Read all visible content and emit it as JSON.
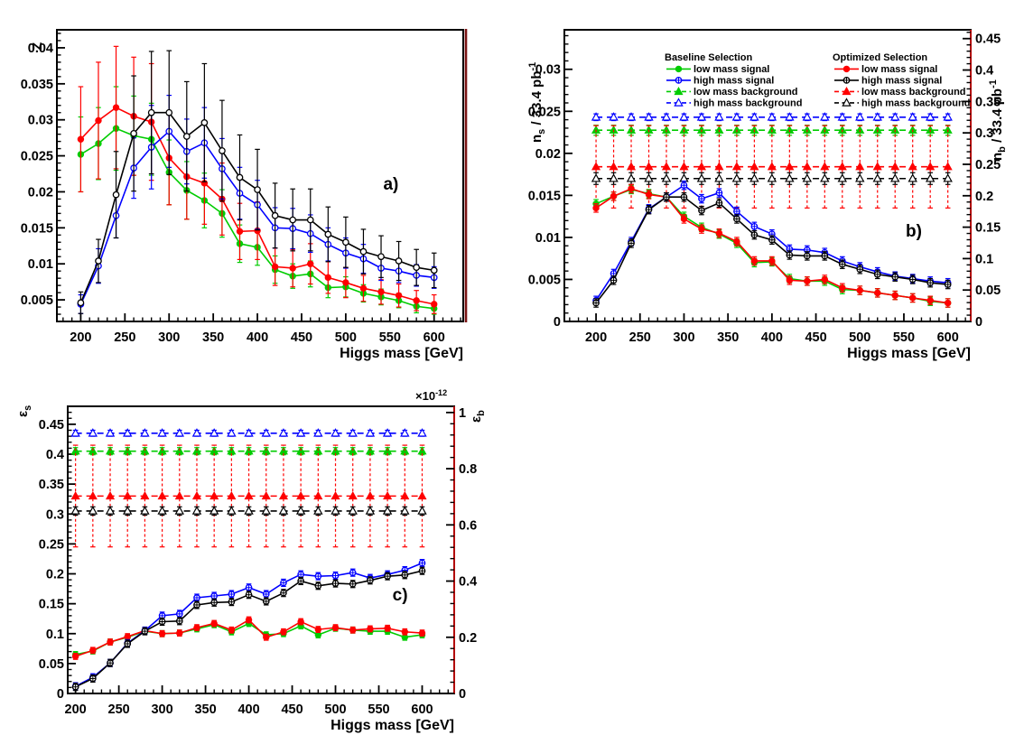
{
  "page": {
    "background": "#ffffff",
    "frame_color": "#000000",
    "accent_red_axis": "#ff0000",
    "maroon_border": "#7a1414"
  },
  "chart_data": [
    {
      "id": "a",
      "type": "line",
      "annotation": "a)",
      "annotation_pos": [
        0.822,
        0.548
      ],
      "xlabel": "Higgs mass [GeV]",
      "ylabel": [
        {
          "t": "Z"
        }
      ],
      "xlim": [
        173,
        633
      ],
      "xticks": [
        200,
        250,
        300,
        350,
        400,
        450,
        500,
        550,
        600
      ],
      "x_minor_step": 10,
      "ylim": [
        0.002,
        0.0425
      ],
      "yticks": [
        0.005,
        0.01,
        0.015,
        0.02,
        0.025,
        0.03,
        0.035,
        0.04
      ],
      "ytick_labels": [
        "0.005",
        "0.01",
        "0.015",
        "0.02",
        "0.025",
        "0.03",
        "0.035",
        "0.04"
      ],
      "y_minor_step": 0.001,
      "grid": false,
      "right_border": "maroon",
      "x": [
        200,
        220,
        240,
        260,
        280,
        300,
        320,
        340,
        360,
        380,
        400,
        420,
        440,
        460,
        480,
        500,
        520,
        540,
        560,
        580,
        600
      ],
      "series": [
        {
          "name": "baseline-low-mass",
          "color": "#00cc00",
          "marker": "circle-filled",
          "line": "solid",
          "values": [
            0.0252,
            0.0267,
            0.0288,
            0.0278,
            0.0273,
            0.0227,
            0.0202,
            0.0188,
            0.017,
            0.0128,
            0.0123,
            0.0092,
            0.0083,
            0.0086,
            0.0067,
            0.0068,
            0.0059,
            0.0054,
            0.0049,
            0.0041,
            0.0038
          ],
          "err": [
            0.0052,
            0.005,
            0.0058,
            0.0055,
            0.005,
            0.0045,
            0.004,
            0.0038,
            0.0033,
            0.0026,
            0.0025,
            0.0019,
            0.0017,
            0.0018,
            0.0014,
            0.0014,
            0.0012,
            0.0011,
            0.001,
            0.0009,
            0.0008
          ]
        },
        {
          "name": "optimized-low-mass",
          "color": "#ff0000",
          "marker": "circle-filled",
          "line": "solid",
          "values": [
            0.0273,
            0.0299,
            0.0317,
            0.0305,
            0.0297,
            0.0247,
            0.0221,
            0.0212,
            0.019,
            0.0145,
            0.0146,
            0.0096,
            0.0094,
            0.01,
            0.0081,
            0.0074,
            0.0066,
            0.0061,
            0.0056,
            0.0049,
            0.0044
          ],
          "err": [
            0.0073,
            0.0081,
            0.0085,
            0.0082,
            0.0081,
            0.0065,
            0.0059,
            0.0057,
            0.005,
            0.0039,
            0.004,
            0.0026,
            0.0026,
            0.0028,
            0.0022,
            0.0021,
            0.0018,
            0.0017,
            0.0016,
            0.0014,
            0.0013
          ]
        },
        {
          "name": "baseline-high-mass",
          "color": "#0000ff",
          "marker": "circle-open",
          "line": "solid",
          "values": [
            0.0044,
            0.0097,
            0.0167,
            0.0233,
            0.0262,
            0.0284,
            0.0256,
            0.0268,
            0.0232,
            0.0198,
            0.0182,
            0.015,
            0.0149,
            0.0142,
            0.0127,
            0.0115,
            0.0107,
            0.0094,
            0.009,
            0.0084,
            0.0081
          ],
          "err": [
            0.0013,
            0.0024,
            0.0031,
            0.0042,
            0.0058,
            0.005,
            0.0045,
            0.0049,
            0.0042,
            0.0036,
            0.0034,
            0.0028,
            0.0028,
            0.0026,
            0.0023,
            0.0021,
            0.002,
            0.0017,
            0.0016,
            0.0015,
            0.0015
          ]
        },
        {
          "name": "optimized-high-mass",
          "color": "#000000",
          "marker": "circle-open",
          "line": "solid",
          "values": [
            0.0046,
            0.0104,
            0.0196,
            0.0281,
            0.031,
            0.031,
            0.0277,
            0.0296,
            0.0257,
            0.022,
            0.0203,
            0.0167,
            0.0161,
            0.0161,
            0.0141,
            0.013,
            0.0117,
            0.011,
            0.0104,
            0.0095,
            0.0091
          ],
          "err": [
            0.0015,
            0.003,
            0.006,
            0.008,
            0.0085,
            0.0086,
            0.0076,
            0.0082,
            0.007,
            0.0059,
            0.0056,
            0.0045,
            0.0043,
            0.0043,
            0.0038,
            0.0035,
            0.0031,
            0.0029,
            0.0027,
            0.0025,
            0.0024
          ]
        }
      ]
    },
    {
      "id": "b",
      "type": "line",
      "annotation": "b)",
      "annotation_pos": [
        0.86,
        0.709
      ],
      "xlabel": "Higgs mass [GeV]",
      "ylabel": [
        {
          "t": "n"
        },
        {
          "t": "s",
          "pos": "sub"
        },
        {
          "t": " / 33.4 pb"
        },
        {
          "t": "-1",
          "pos": "sup"
        }
      ],
      "xlim": [
        164,
        626
      ],
      "xticks": [
        200,
        250,
        300,
        350,
        400,
        450,
        500,
        550,
        600
      ],
      "x_minor_step": 10,
      "ylim": [
        0,
        0.0347
      ],
      "yticks": [
        0,
        0.005,
        0.01,
        0.015,
        0.02,
        0.025,
        0.03
      ],
      "ytick_labels": [
        "0",
        "0.005",
        "0.01",
        "0.015",
        "0.02",
        "0.025",
        "0.03"
      ],
      "y_minor_step": 0.001,
      "right_border": "red",
      "right_axis": {
        "ylabel": [
          {
            "t": "n"
          },
          {
            "t": "b",
            "pos": "sub"
          },
          {
            "t": " / 33.4 pb"
          },
          {
            "t": "-1",
            "pos": "sup"
          }
        ],
        "ylim": [
          0,
          0.464
        ],
        "ticks": [
          0,
          0.05,
          0.1,
          0.15,
          0.2,
          0.25,
          0.3,
          0.35,
          0.4,
          0.45
        ],
        "tick_labels": [
          "0",
          "0.05",
          "0.1",
          "0.15",
          "0.2",
          "0.25",
          "0.3",
          "0.35",
          "0.4",
          "0.45"
        ],
        "minor_step": 0.01
      },
      "x": [
        200,
        220,
        240,
        260,
        280,
        300,
        320,
        340,
        360,
        380,
        400,
        420,
        440,
        460,
        480,
        500,
        520,
        540,
        560,
        580,
        600
      ],
      "series": [
        {
          "name": "baseline-low-mass-background",
          "color": "#00cc00",
          "marker": "triangle-filled",
          "line": "dashed",
          "const": 0.02275,
          "err": 0.0006
        },
        {
          "name": "baseline-high-mass-background",
          "color": "#0000ff",
          "marker": "triangle-open",
          "line": "dashed",
          "const": 0.0243,
          "err": 0.0004
        },
        {
          "name": "optimized-low-mass-background",
          "color": "#ff0000",
          "marker": "triangle-filled",
          "line": "dashed",
          "const": 0.0184,
          "err": 0.0049
        },
        {
          "name": "optimized-high-mass-background",
          "color": "#000000",
          "marker": "triangle-open",
          "line": "dashed",
          "const": 0.017,
          "err": 0.0007
        },
        {
          "name": "baseline-low-mass-signal",
          "color": "#00cc00",
          "marker": "circle-filled",
          "line": "solid",
          "values": [
            0.014,
            0.0149,
            0.0157,
            0.0152,
            0.0148,
            0.0125,
            0.0112,
            0.0104,
            0.0093,
            0.007,
            0.0071,
            0.0051,
            0.0048,
            0.0048,
            0.0038,
            0.0037,
            0.0034,
            0.0031,
            0.0028,
            0.0024,
            0.0022
          ],
          "err": 0.0005
        },
        {
          "name": "optimized-low-mass-signal",
          "color": "#ff0000",
          "marker": "circle-filled",
          "line": "solid",
          "values": [
            0.0135,
            0.0149,
            0.0158,
            0.0151,
            0.0148,
            0.0122,
            0.011,
            0.0105,
            0.0095,
            0.0072,
            0.0072,
            0.0049,
            0.0048,
            0.005,
            0.004,
            0.0037,
            0.0034,
            0.0031,
            0.0028,
            0.0025,
            0.0022
          ],
          "err": 0.0005
        },
        {
          "name": "baseline-high-mass-signal",
          "color": "#0000ff",
          "marker": "circle-cross",
          "line": "solid",
          "values": [
            0.0025,
            0.0057,
            0.0095,
            0.0134,
            0.0148,
            0.0162,
            0.0146,
            0.0153,
            0.0131,
            0.0113,
            0.0104,
            0.0086,
            0.0085,
            0.0082,
            0.0072,
            0.0065,
            0.0059,
            0.0054,
            0.0051,
            0.0048,
            0.0046
          ],
          "err": 0.0005
        },
        {
          "name": "optimized-high-mass-signal",
          "color": "#000000",
          "marker": "circle-cross",
          "line": "solid",
          "values": [
            0.0022,
            0.0049,
            0.0093,
            0.0133,
            0.0148,
            0.0148,
            0.0132,
            0.0141,
            0.0122,
            0.0103,
            0.0097,
            0.0079,
            0.0078,
            0.0078,
            0.0068,
            0.0062,
            0.0056,
            0.0053,
            0.005,
            0.0046,
            0.0044
          ],
          "err": 0.0005
        }
      ],
      "legend": {
        "groups": [
          {
            "title": "Baseline Selection",
            "items": [
              {
                "label": "low mass signal",
                "series": 4
              },
              {
                "label": "high mass signal",
                "series": 6
              },
              {
                "label": "low mass background",
                "series": 0
              },
              {
                "label": "high mass background",
                "series": 1
              }
            ]
          },
          {
            "title": "Optimized Selection",
            "items": [
              {
                "label": "low mass signal",
                "series": 5
              },
              {
                "label": "high mass signal",
                "series": 7
              },
              {
                "label": "low mass background",
                "series": 2
              },
              {
                "label": "high mass background",
                "series": 3
              }
            ]
          }
        ]
      }
    },
    {
      "id": "c",
      "type": "line",
      "annotation": "c)",
      "annotation_pos": [
        0.86,
        0.676
      ],
      "xlabel": "Higgs mass [GeV]",
      "ylabel": [
        {
          "t": "ε"
        },
        {
          "t": "s",
          "pos": "sub"
        }
      ],
      "xlim": [
        191,
        637
      ],
      "xticks": [
        200,
        250,
        300,
        350,
        400,
        450,
        500,
        550,
        600
      ],
      "x_minor_step": 10,
      "ylim": [
        0,
        0.48
      ],
      "yticks": [
        0,
        0.05,
        0.1,
        0.15,
        0.2,
        0.25,
        0.3,
        0.35,
        0.4,
        0.45
      ],
      "ytick_labels": [
        "0",
        "0.05",
        "0.1",
        "0.15",
        "0.2",
        "0.25",
        "0.3",
        "0.35",
        "0.4",
        "0.45"
      ],
      "y_minor_step": 0.01,
      "right_border": "red",
      "right_axis": {
        "ylabel": [
          {
            "t": "ε"
          },
          {
            "t": "b",
            "pos": "sub"
          }
        ],
        "multiplier": [
          {
            "t": "×10"
          },
          {
            "t": "-12",
            "pos": "sup"
          }
        ],
        "ylim": [
          0,
          1.022
        ],
        "ticks": [
          0,
          0.2,
          0.4,
          0.6,
          0.8,
          1
        ],
        "tick_labels": [
          "0",
          "0.2",
          "0.4",
          "0.6",
          "0.8",
          "1"
        ],
        "minor_step": 0.04
      },
      "x": [
        200,
        220,
        240,
        260,
        280,
        300,
        320,
        340,
        360,
        380,
        400,
        420,
        440,
        460,
        480,
        500,
        520,
        540,
        560,
        580,
        600
      ],
      "series": [
        {
          "name": "baseline-low-mass-background",
          "color": "#00cc00",
          "marker": "triangle-filled",
          "line": "dashed",
          "const": 0.405,
          "err": 0.006
        },
        {
          "name": "baseline-high-mass-background",
          "color": "#0000ff",
          "marker": "triangle-open",
          "line": "dashed",
          "const": 0.435,
          "err": 0.005
        },
        {
          "name": "optimized-low-mass-background",
          "color": "#ff0000",
          "marker": "triangle-filled",
          "line": "dashed",
          "const": 0.33,
          "err": 0.085
        },
        {
          "name": "optimized-high-mass-background",
          "color": "#000000",
          "marker": "triangle-open",
          "line": "dashed",
          "const": 0.305,
          "err": 0.007
        },
        {
          "name": "baseline-low-mass-signal",
          "color": "#00cc00",
          "marker": "circle-filled",
          "line": "solid",
          "values": [
            0.065,
            0.071,
            0.086,
            0.094,
            0.104,
            0.1,
            0.101,
            0.108,
            0.115,
            0.103,
            0.117,
            0.098,
            0.1,
            0.113,
            0.098,
            0.109,
            0.106,
            0.104,
            0.104,
            0.094,
            0.098
          ],
          "err": 0.005
        },
        {
          "name": "optimized-low-mass-signal",
          "color": "#ff0000",
          "marker": "circle-filled",
          "line": "solid",
          "values": [
            0.062,
            0.072,
            0.086,
            0.095,
            0.105,
            0.1,
            0.101,
            0.11,
            0.117,
            0.106,
            0.123,
            0.094,
            0.103,
            0.12,
            0.107,
            0.11,
            0.106,
            0.108,
            0.109,
            0.103,
            0.101
          ],
          "err": 0.005
        },
        {
          "name": "baseline-high-mass-signal",
          "color": "#0000ff",
          "marker": "circle-cross",
          "line": "solid",
          "values": [
            0.012,
            0.027,
            0.051,
            0.084,
            0.105,
            0.13,
            0.133,
            0.16,
            0.163,
            0.166,
            0.177,
            0.166,
            0.185,
            0.199,
            0.196,
            0.197,
            0.202,
            0.193,
            0.199,
            0.206,
            0.218
          ],
          "err": 0.006
        },
        {
          "name": "optimized-high-mass-signal",
          "color": "#000000",
          "marker": "circle-cross",
          "line": "solid",
          "values": [
            0.011,
            0.025,
            0.051,
            0.083,
            0.104,
            0.12,
            0.121,
            0.148,
            0.152,
            0.153,
            0.165,
            0.154,
            0.168,
            0.188,
            0.18,
            0.184,
            0.183,
            0.189,
            0.196,
            0.198,
            0.205
          ],
          "err": 0.006
        }
      ]
    }
  ]
}
